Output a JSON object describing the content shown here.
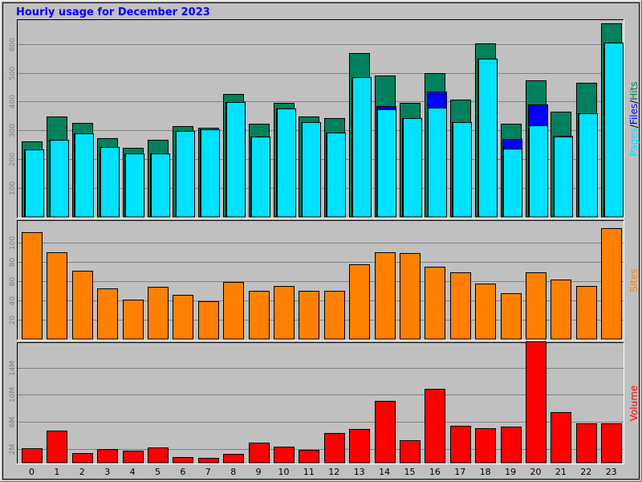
{
  "chart_data": {
    "title": "Hourly usage for December 2023",
    "hours": [
      "0",
      "1",
      "2",
      "3",
      "4",
      "5",
      "6",
      "7",
      "8",
      "9",
      "10",
      "11",
      "12",
      "13",
      "14",
      "15",
      "16",
      "17",
      "18",
      "19",
      "20",
      "21",
      "22",
      "23"
    ],
    "colors": {
      "hits": "#00805c",
      "files": "#0000ff",
      "pages": "#00e0ff",
      "sites": "#ff8000",
      "volume": "#ff0000",
      "background": "#c0c0c0",
      "gridline": "#808080",
      "title": "#0000ff"
    },
    "panels": [
      {
        "id": "pages-files-hits",
        "type": "bar",
        "ylim": [
          0,
          680
        ],
        "yticks": [
          100,
          200,
          300,
          400,
          500,
          600
        ],
        "ytick_labels": [
          "100",
          "200",
          "300",
          "400",
          "500",
          "600"
        ],
        "side_label_parts": [
          {
            "key": "pages",
            "text": "Pages"
          },
          {
            "key": "sep",
            "text": "/"
          },
          {
            "key": "files",
            "text": "Files"
          },
          {
            "key": "sep",
            "text": "/"
          },
          {
            "key": "hits",
            "text": "Hits"
          }
        ],
        "series": [
          {
            "key": "hits",
            "values": [
              262,
              347,
              327,
              272,
              240,
              267,
              316,
              310,
              426,
              322,
              395,
              348,
              344,
              568,
              490,
              395,
              498,
              407,
              603,
              322,
              473,
              365,
              465,
              672
            ]
          },
          {
            "key": "files",
            "values": [
              235,
              268,
              290,
              242,
              220,
              220,
              298,
              304,
              398,
              280,
              376,
              330,
              294,
              484,
              384,
              343,
              434,
              330,
              550,
              270,
              390,
              282,
              360,
              606
            ]
          },
          {
            "key": "pages",
            "values": [
              235,
              268,
              290,
              242,
              220,
              220,
              298,
              304,
              398,
              280,
              376,
              330,
              294,
              484,
              374,
              343,
              378,
              330,
              550,
              238,
              318,
              278,
              360,
              606
            ]
          }
        ]
      },
      {
        "id": "sites",
        "type": "bar",
        "ylim": [
          0,
          122
        ],
        "yticks": [
          20,
          40,
          60,
          80,
          100
        ],
        "ytick_labels": [
          "20",
          "40",
          "60",
          "80",
          "100"
        ],
        "side_label_parts": [
          {
            "key": "sites",
            "text": "Sites"
          }
        ],
        "series": [
          {
            "key": "sites",
            "values": [
              111,
              90,
              71,
              53,
              41,
              54,
              46,
              39,
              59,
              50,
              55,
              50,
              50,
              78,
              90,
              89,
              75,
              69,
              58,
              48,
              69,
              62,
              55,
              115
            ]
          }
        ]
      },
      {
        "id": "volume",
        "type": "bar",
        "ylim": [
          0,
          17.5
        ],
        "yticks": [
          2,
          6,
          10,
          14
        ],
        "ytick_labels": [
          "2M",
          "6M",
          "10M",
          "14M"
        ],
        "side_label_parts": [
          {
            "key": "volume",
            "text": "Volume"
          }
        ],
        "series": [
          {
            "key": "volume",
            "values": [
              2.1,
              4.7,
              1.4,
              2.0,
              1.8,
              2.2,
              0.8,
              0.7,
              1.3,
              2.9,
              2.4,
              1.9,
              4.4,
              5.0,
              9.1,
              3.3,
              10.9,
              5.4,
              5.1,
              5.3,
              17.8,
              7.5,
              5.8,
              5.8
            ]
          }
        ]
      }
    ]
  }
}
